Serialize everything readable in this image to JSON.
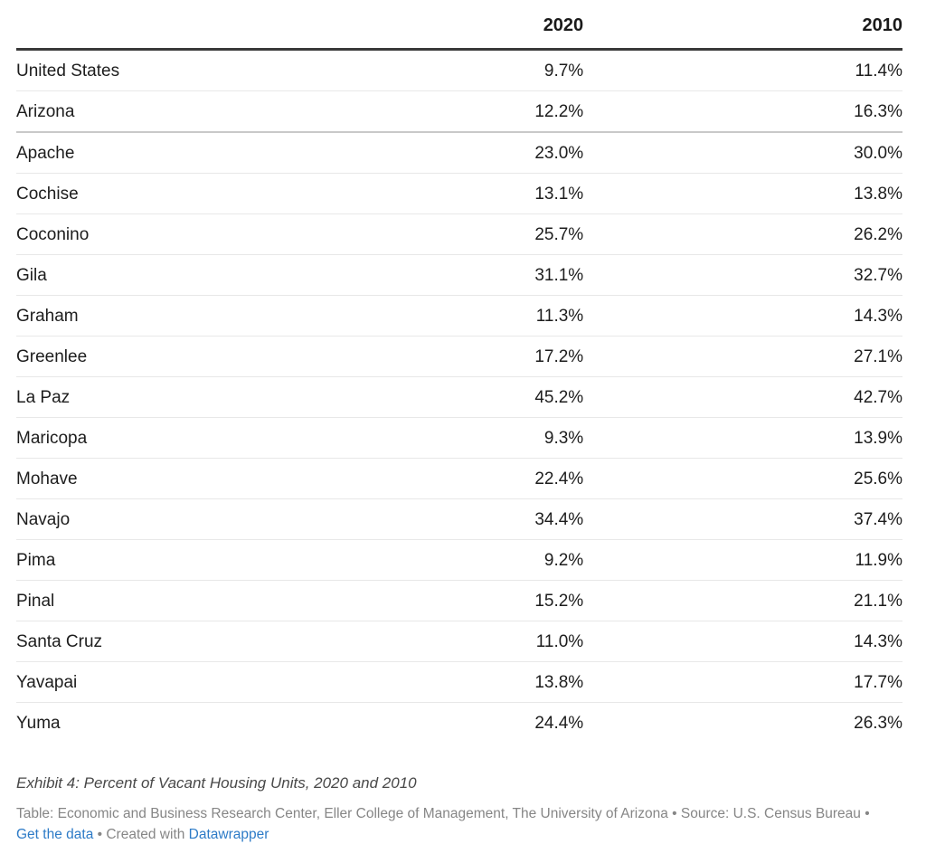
{
  "colors": {
    "text": "#1d1d1d",
    "header_rule": "#393939",
    "row_rule": "#e8e8e8",
    "group_divider_rule": "#c9c9c9",
    "caption_text": "#484848",
    "attribution_text": "#868686",
    "link": "#2d7bc7"
  },
  "table": {
    "columns": [
      {
        "label": ""
      },
      {
        "label": "2020"
      },
      {
        "label": "2010"
      }
    ],
    "rows": [
      {
        "name": "United States",
        "v2020": "9.7%",
        "v2010": "11.4%",
        "divider_below": false
      },
      {
        "name": "Arizona",
        "v2020": "12.2%",
        "v2010": "16.3%",
        "divider_below": true
      },
      {
        "name": "Apache",
        "v2020": "23.0%",
        "v2010": "30.0%",
        "divider_below": false
      },
      {
        "name": "Cochise",
        "v2020": "13.1%",
        "v2010": "13.8%",
        "divider_below": false
      },
      {
        "name": "Coconino",
        "v2020": "25.7%",
        "v2010": "26.2%",
        "divider_below": false
      },
      {
        "name": "Gila",
        "v2020": "31.1%",
        "v2010": "32.7%",
        "divider_below": false
      },
      {
        "name": "Graham",
        "v2020": "11.3%",
        "v2010": "14.3%",
        "divider_below": false
      },
      {
        "name": "Greenlee",
        "v2020": "17.2%",
        "v2010": "27.1%",
        "divider_below": false
      },
      {
        "name": "La Paz",
        "v2020": "45.2%",
        "v2010": "42.7%",
        "divider_below": false
      },
      {
        "name": "Maricopa",
        "v2020": "9.3%",
        "v2010": "13.9%",
        "divider_below": false
      },
      {
        "name": "Mohave",
        "v2020": "22.4%",
        "v2010": "25.6%",
        "divider_below": false
      },
      {
        "name": "Navajo",
        "v2020": "34.4%",
        "v2010": "37.4%",
        "divider_below": false
      },
      {
        "name": "Pima",
        "v2020": "9.2%",
        "v2010": "11.9%",
        "divider_below": false
      },
      {
        "name": "Pinal",
        "v2020": "15.2%",
        "v2010": "21.1%",
        "divider_below": false
      },
      {
        "name": "Santa Cruz",
        "v2020": "11.0%",
        "v2010": "14.3%",
        "divider_below": false
      },
      {
        "name": "Yavapai",
        "v2020": "13.8%",
        "v2010": "17.7%",
        "divider_below": false
      },
      {
        "name": "Yuma",
        "v2020": "24.4%",
        "v2010": "26.3%",
        "divider_below": false
      }
    ]
  },
  "footer": {
    "title": "Exhibit 4: Percent of Vacant Housing Units, 2020 and 2010",
    "attribution_prefix": "Table: Economic and Business Research Center, Eller College of Management, The University of Arizona • Source: U.S. Census Bureau • ",
    "get_data_label": "Get the data",
    "between_text": " • Created with ",
    "datawrapper_label": "Datawrapper"
  },
  "chart_data": {
    "type": "table",
    "title": "Exhibit 4: Percent of Vacant Housing Units, 2020 and 2010",
    "categories": [
      "United States",
      "Arizona",
      "Apache",
      "Cochise",
      "Coconino",
      "Gila",
      "Graham",
      "Greenlee",
      "La Paz",
      "Maricopa",
      "Mohave",
      "Navajo",
      "Pima",
      "Pinal",
      "Santa Cruz",
      "Yavapai",
      "Yuma"
    ],
    "series": [
      {
        "name": "2020",
        "values": [
          9.7,
          12.2,
          23.0,
          13.1,
          25.7,
          31.1,
          11.3,
          17.2,
          45.2,
          9.3,
          22.4,
          34.4,
          9.2,
          15.2,
          11.0,
          13.8,
          24.4
        ]
      },
      {
        "name": "2010",
        "values": [
          11.4,
          16.3,
          30.0,
          13.8,
          26.2,
          32.7,
          14.3,
          27.1,
          42.7,
          13.9,
          25.6,
          37.4,
          11.9,
          21.1,
          14.3,
          17.7,
          26.3
        ]
      }
    ],
    "value_unit": "%",
    "layout": {
      "value_columns_right_aligned": true,
      "header_rule": true,
      "row_gridlines": true,
      "group_divider_after": "Arizona"
    }
  }
}
